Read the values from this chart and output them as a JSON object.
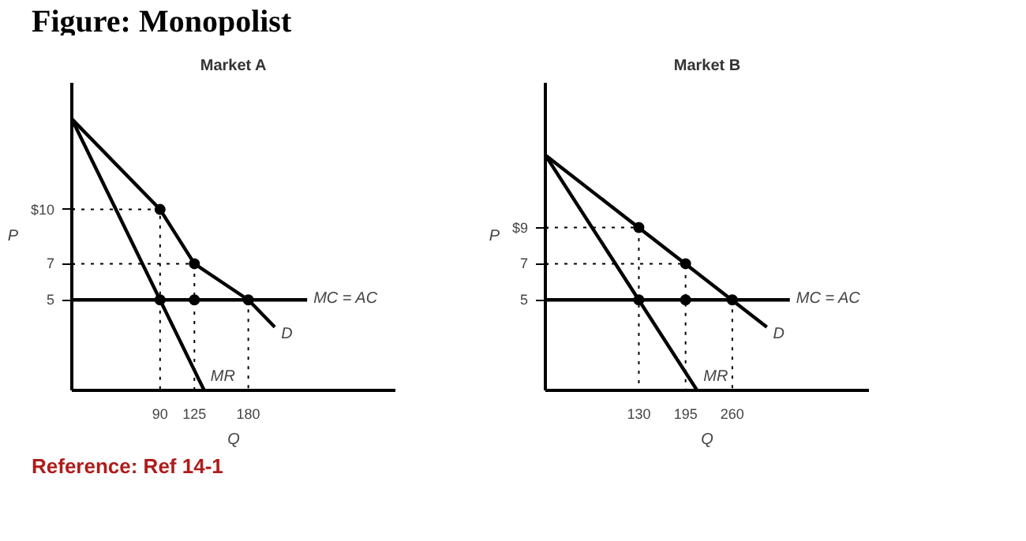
{
  "chart_data": [
    {
      "type": "line",
      "title": "Market A",
      "xlabel": "Q",
      "ylabel": "P",
      "annotations": [
        "Figure: Monopolist",
        "Reference: Ref 14-1"
      ],
      "xlim": [
        0,
        330
      ],
      "ylim": [
        0,
        17
      ],
      "xticks": [
        90,
        125,
        180
      ],
      "yticks": [
        5,
        7,
        {
          "value": 10,
          "label": "$10"
        }
      ],
      "grid": false,
      "legend": false,
      "marker": "none",
      "line_style": "solid",
      "series": [
        {
          "name": "D",
          "color": "#000000",
          "x": [
            0,
            90,
            125,
            180,
            207
          ],
          "values": [
            15,
            10,
            7,
            5,
            3.5
          ]
        },
        {
          "name": "MR",
          "color": "#000000",
          "x": [
            0,
            135
          ],
          "values": [
            15,
            0
          ]
        },
        {
          "name": "MC = AC",
          "color": "#000000",
          "x": [
            0,
            240
          ],
          "values": [
            5,
            5
          ]
        },
        {
          "color": "#000000",
          "line_style": "dotted",
          "x": [
            0,
            90,
            90
          ],
          "values": [
            10,
            10,
            0
          ]
        },
        {
          "color": "#000000",
          "line_style": "dotted",
          "x": [
            0,
            125,
            125
          ],
          "values": [
            7,
            7,
            0
          ]
        },
        {
          "color": "#000000",
          "line_style": "dotted",
          "x": [
            180,
            180
          ],
          "values": [
            5,
            0
          ]
        },
        {
          "type": "scatter",
          "marker": "circle",
          "color": "#000000",
          "x": [
            90,
            125,
            180,
            90,
            125
          ],
          "values": [
            10,
            7,
            5,
            5,
            5
          ]
        }
      ]
    },
    {
      "type": "line",
      "title": "Market B",
      "xlabel": "Q",
      "ylabel": "P",
      "xlim": [
        0,
        450
      ],
      "ylim": [
        0,
        17
      ],
      "xticks": [
        130,
        195,
        260
      ],
      "yticks": [
        5,
        7,
        {
          "value": 9,
          "label": "$9"
        }
      ],
      "grid": false,
      "legend": false,
      "marker": "none",
      "line_style": "solid",
      "series": [
        {
          "name": "D",
          "color": "#000000",
          "x": [
            0,
            308
          ],
          "values": [
            13,
            3.5
          ]
        },
        {
          "name": "MR",
          "color": "#000000",
          "x": [
            0,
            211
          ],
          "values": [
            13,
            0
          ]
        },
        {
          "name": "MC = AC",
          "color": "#000000",
          "x": [
            0,
            340
          ],
          "values": [
            5,
            5
          ]
        },
        {
          "color": "#000000",
          "line_style": "dotted",
          "x": [
            0,
            130,
            130
          ],
          "values": [
            9,
            9,
            0
          ]
        },
        {
          "color": "#000000",
          "line_style": "dotted",
          "x": [
            0,
            195,
            195
          ],
          "values": [
            7,
            7,
            0
          ]
        },
        {
          "color": "#000000",
          "line_style": "dotted",
          "x": [
            260,
            260
          ],
          "values": [
            5,
            0
          ]
        },
        {
          "type": "scatter",
          "marker": "circle",
          "color": "#000000",
          "x": [
            130,
            195,
            260,
            130,
            195
          ],
          "values": [
            9,
            7,
            5,
            5,
            5
          ]
        }
      ]
    }
  ]
}
